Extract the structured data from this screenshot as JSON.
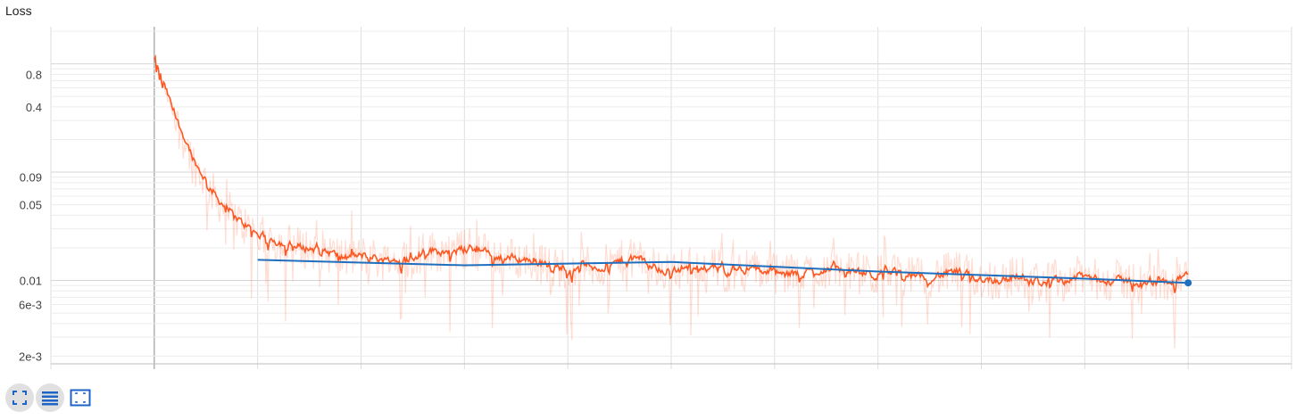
{
  "title": "Loss",
  "chart_data": {
    "type": "line",
    "title": "Loss",
    "xlabel": "",
    "ylabel": "",
    "yscale": "log",
    "ylim": [
      0.0017,
      2.2
    ],
    "y_ticks": [
      {
        "value": 0.8,
        "label": "0.8"
      },
      {
        "value": 0.4,
        "label": "0.4"
      },
      {
        "value": 0.09,
        "label": "0.09"
      },
      {
        "value": 0.05,
        "label": "0.05"
      },
      {
        "value": 0.01,
        "label": "0.01"
      },
      {
        "value": 0.006,
        "label": "6e-3"
      },
      {
        "value": 0.002,
        "label": "2e-3"
      }
    ],
    "x_ticks": [],
    "xlim": [
      0,
      12
    ],
    "grid": true,
    "series": [
      {
        "color": "#ff5722",
        "smoothed": true,
        "x_start": 1,
        "x_end": 11,
        "values": [
          1.05,
          0.3,
          0.11,
          0.055,
          0.035,
          0.026,
          0.022,
          0.02,
          0.019,
          0.016,
          0.017,
          0.015,
          0.016,
          0.019,
          0.018,
          0.02,
          0.017,
          0.016,
          0.015,
          0.013,
          0.014,
          0.013,
          0.015,
          0.016,
          0.012,
          0.013,
          0.014,
          0.012,
          0.013,
          0.012,
          0.011,
          0.012,
          0.013,
          0.012,
          0.011,
          0.012,
          0.0105,
          0.011,
          0.012,
          0.0105,
          0.01,
          0.011,
          0.0095,
          0.01,
          0.011,
          0.0098,
          0.01,
          0.0092,
          0.0098,
          0.0115
        ]
      },
      {
        "color": "#1f6fbf",
        "smoothed": false,
        "x": [
          2,
          4,
          6,
          8,
          10,
          11
        ],
        "values": [
          0.0155,
          0.0138,
          0.0148,
          0.0121,
          0.0104,
          0.0095
        ]
      }
    ]
  },
  "toolbar": {
    "buttons": [
      {
        "icon": "fullscreen-icon",
        "label": "Toggle expanded size"
      },
      {
        "icon": "legend-list-icon",
        "label": "Toggle log scale"
      },
      {
        "icon": "fit-domain-icon",
        "label": "Fit domain to data"
      }
    ]
  },
  "colors": {
    "primary": "#ff5722",
    "secondary": "#1f6fbf",
    "grid": "#e0e0e0",
    "icon": "#1e63c8"
  }
}
